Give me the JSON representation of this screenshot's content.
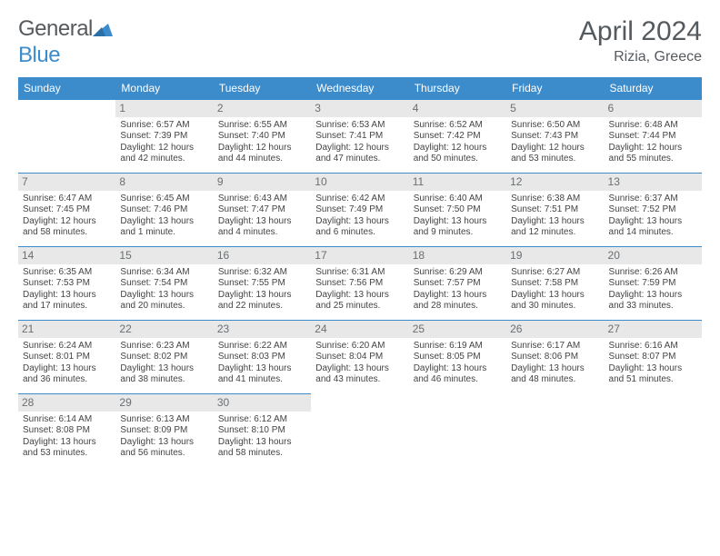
{
  "brand": {
    "part1": "General",
    "part2": "Blue"
  },
  "header": {
    "month_title": "April 2024",
    "location": "Rizia, Greece"
  },
  "colors": {
    "accent": "#3c8ccc",
    "daynum_bg": "#e8e8e8",
    "text": "#555a5f"
  },
  "calendar": {
    "type": "table",
    "columns": [
      "Sunday",
      "Monday",
      "Tuesday",
      "Wednesday",
      "Thursday",
      "Friday",
      "Saturday"
    ],
    "start_offset": 1,
    "days": [
      {
        "n": 1,
        "sunrise": "6:57 AM",
        "sunset": "7:39 PM",
        "daylight": "12 hours and 42 minutes."
      },
      {
        "n": 2,
        "sunrise": "6:55 AM",
        "sunset": "7:40 PM",
        "daylight": "12 hours and 44 minutes."
      },
      {
        "n": 3,
        "sunrise": "6:53 AM",
        "sunset": "7:41 PM",
        "daylight": "12 hours and 47 minutes."
      },
      {
        "n": 4,
        "sunrise": "6:52 AM",
        "sunset": "7:42 PM",
        "daylight": "12 hours and 50 minutes."
      },
      {
        "n": 5,
        "sunrise": "6:50 AM",
        "sunset": "7:43 PM",
        "daylight": "12 hours and 53 minutes."
      },
      {
        "n": 6,
        "sunrise": "6:48 AM",
        "sunset": "7:44 PM",
        "daylight": "12 hours and 55 minutes."
      },
      {
        "n": 7,
        "sunrise": "6:47 AM",
        "sunset": "7:45 PM",
        "daylight": "12 hours and 58 minutes."
      },
      {
        "n": 8,
        "sunrise": "6:45 AM",
        "sunset": "7:46 PM",
        "daylight": "13 hours and 1 minute."
      },
      {
        "n": 9,
        "sunrise": "6:43 AM",
        "sunset": "7:47 PM",
        "daylight": "13 hours and 4 minutes."
      },
      {
        "n": 10,
        "sunrise": "6:42 AM",
        "sunset": "7:49 PM",
        "daylight": "13 hours and 6 minutes."
      },
      {
        "n": 11,
        "sunrise": "6:40 AM",
        "sunset": "7:50 PM",
        "daylight": "13 hours and 9 minutes."
      },
      {
        "n": 12,
        "sunrise": "6:38 AM",
        "sunset": "7:51 PM",
        "daylight": "13 hours and 12 minutes."
      },
      {
        "n": 13,
        "sunrise": "6:37 AM",
        "sunset": "7:52 PM",
        "daylight": "13 hours and 14 minutes."
      },
      {
        "n": 14,
        "sunrise": "6:35 AM",
        "sunset": "7:53 PM",
        "daylight": "13 hours and 17 minutes."
      },
      {
        "n": 15,
        "sunrise": "6:34 AM",
        "sunset": "7:54 PM",
        "daylight": "13 hours and 20 minutes."
      },
      {
        "n": 16,
        "sunrise": "6:32 AM",
        "sunset": "7:55 PM",
        "daylight": "13 hours and 22 minutes."
      },
      {
        "n": 17,
        "sunrise": "6:31 AM",
        "sunset": "7:56 PM",
        "daylight": "13 hours and 25 minutes."
      },
      {
        "n": 18,
        "sunrise": "6:29 AM",
        "sunset": "7:57 PM",
        "daylight": "13 hours and 28 minutes."
      },
      {
        "n": 19,
        "sunrise": "6:27 AM",
        "sunset": "7:58 PM",
        "daylight": "13 hours and 30 minutes."
      },
      {
        "n": 20,
        "sunrise": "6:26 AM",
        "sunset": "7:59 PM",
        "daylight": "13 hours and 33 minutes."
      },
      {
        "n": 21,
        "sunrise": "6:24 AM",
        "sunset": "8:01 PM",
        "daylight": "13 hours and 36 minutes."
      },
      {
        "n": 22,
        "sunrise": "6:23 AM",
        "sunset": "8:02 PM",
        "daylight": "13 hours and 38 minutes."
      },
      {
        "n": 23,
        "sunrise": "6:22 AM",
        "sunset": "8:03 PM",
        "daylight": "13 hours and 41 minutes."
      },
      {
        "n": 24,
        "sunrise": "6:20 AM",
        "sunset": "8:04 PM",
        "daylight": "13 hours and 43 minutes."
      },
      {
        "n": 25,
        "sunrise": "6:19 AM",
        "sunset": "8:05 PM",
        "daylight": "13 hours and 46 minutes."
      },
      {
        "n": 26,
        "sunrise": "6:17 AM",
        "sunset": "8:06 PM",
        "daylight": "13 hours and 48 minutes."
      },
      {
        "n": 27,
        "sunrise": "6:16 AM",
        "sunset": "8:07 PM",
        "daylight": "13 hours and 51 minutes."
      },
      {
        "n": 28,
        "sunrise": "6:14 AM",
        "sunset": "8:08 PM",
        "daylight": "13 hours and 53 minutes."
      },
      {
        "n": 29,
        "sunrise": "6:13 AM",
        "sunset": "8:09 PM",
        "daylight": "13 hours and 56 minutes."
      },
      {
        "n": 30,
        "sunrise": "6:12 AM",
        "sunset": "8:10 PM",
        "daylight": "13 hours and 58 minutes."
      }
    ],
    "labels": {
      "sunrise": "Sunrise:",
      "sunset": "Sunset:",
      "daylight": "Daylight:"
    }
  }
}
